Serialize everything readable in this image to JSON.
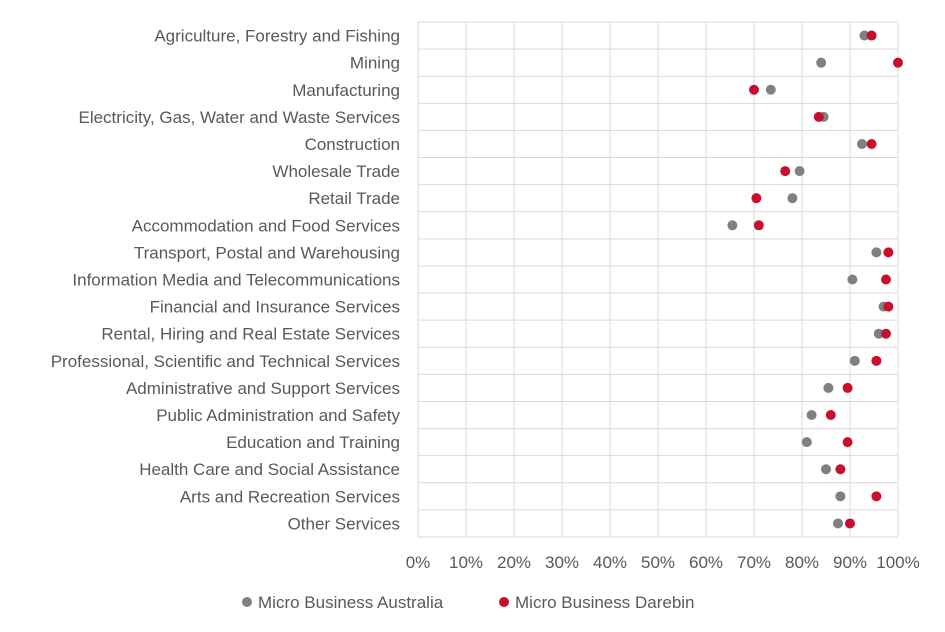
{
  "chart_data": {
    "type": "scatter",
    "title": "",
    "xlabel": "",
    "ylabel": "",
    "xlim": [
      0,
      100
    ],
    "x_ticks": [
      "0%",
      "10%",
      "20%",
      "30%",
      "40%",
      "50%",
      "60%",
      "70%",
      "80%",
      "90%",
      "100%"
    ],
    "grid": true,
    "legend_position": "bottom",
    "categories": [
      "Agriculture, Forestry and Fishing",
      "Mining",
      "Manufacturing",
      "Electricity, Gas, Water and Waste Services",
      "Construction",
      "Wholesale Trade",
      "Retail Trade",
      "Accommodation and Food Services",
      "Transport, Postal and Warehousing",
      "Information Media and Telecommunications",
      "Financial and Insurance Services",
      "Rental, Hiring and Real Estate Services",
      "Professional, Scientific and Technical Services",
      "Administrative and Support Services",
      "Public Administration and Safety",
      "Education and Training",
      "Health Care and Social Assistance",
      "Arts and Recreation Services",
      "Other Services"
    ],
    "series": [
      {
        "name": "Micro Business Australia",
        "color": "#808080",
        "values": [
          93,
          84,
          73.5,
          84.5,
          92.5,
          79.5,
          78,
          65.5,
          95.5,
          90.5,
          97,
          96,
          91,
          85.5,
          82,
          81,
          85,
          88,
          87.5
        ]
      },
      {
        "name": "Micro Business Darebin",
        "color": "#c8102e",
        "values": [
          94.5,
          100,
          70,
          83.5,
          94.5,
          76.5,
          70.5,
          71,
          98,
          97.5,
          98,
          97.5,
          95.5,
          89.5,
          86,
          89.5,
          88,
          95.5,
          90
        ]
      }
    ]
  }
}
